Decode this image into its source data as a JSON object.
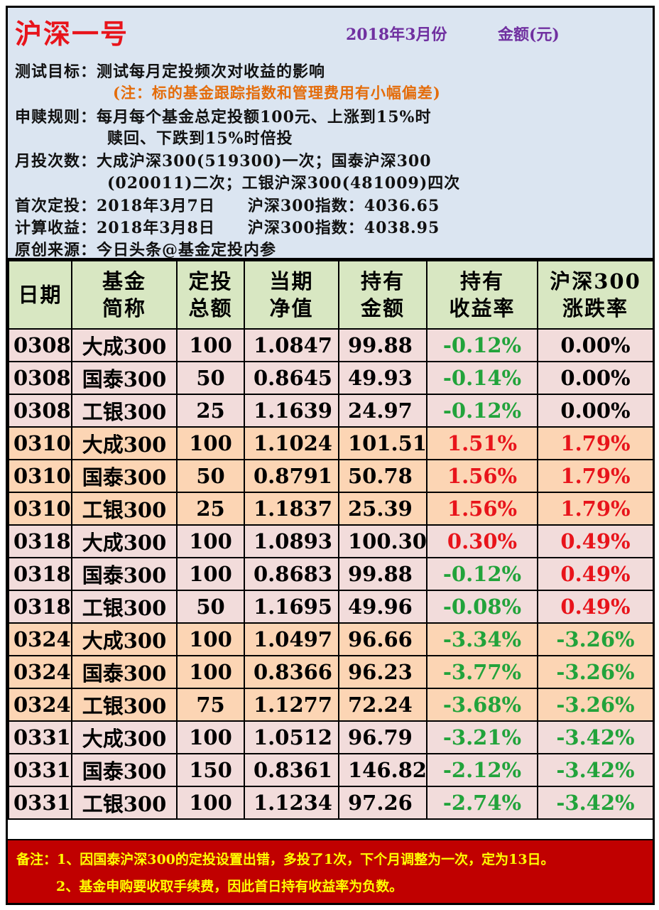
{
  "header": {
    "title": "沪深一号",
    "month": "2018年3月份",
    "unit": "金额(元)",
    "line1": "测试目标：测试每月定投频次对收益的影响",
    "line1_note": "(注：标的基金跟踪指数和管理费用有小幅偏差)",
    "line2a": "申赎规则：每月每个基金总定投额100元、上涨到15%时",
    "line2b": "赎回、下跌到15%时倍投",
    "line3a": "月投次数：大成沪深300(519300)一次；国泰沪深300",
    "line3b": "(020011)二次；工银沪深300(481009)四次",
    "line4": "首次定投：2018年3月7日　　沪深300指数：4036.65",
    "line5": "计算收益：2018年3月8日　　沪深300指数：4038.95",
    "line6": "原创来源：今日头条@基金定投内参"
  },
  "table": {
    "headers": [
      "日期",
      "基金\n简称",
      "定投\n总额",
      "当期\n净值",
      "持有\n金额",
      "持有\n收益率",
      "沪深300\n涨跌率"
    ],
    "rows": [
      {
        "date": "0308",
        "fund": "大成300",
        "amount": "100",
        "nav": "1.0847",
        "hold": "99.88",
        "ret": "-0.12%",
        "idx": "0.00%"
      },
      {
        "date": "0308",
        "fund": "国泰300",
        "amount": "50",
        "nav": "0.8645",
        "hold": "49.93",
        "ret": "-0.14%",
        "idx": "0.00%"
      },
      {
        "date": "0308",
        "fund": "工银300",
        "amount": "25",
        "nav": "1.1639",
        "hold": "24.97",
        "ret": "-0.12%",
        "idx": "0.00%"
      },
      {
        "date": "0310",
        "fund": "大成300",
        "amount": "100",
        "nav": "1.1024",
        "hold": "101.51",
        "ret": "1.51%",
        "idx": "1.79%"
      },
      {
        "date": "0310",
        "fund": "国泰300",
        "amount": "50",
        "nav": "0.8791",
        "hold": "50.78",
        "ret": "1.56%",
        "idx": "1.79%"
      },
      {
        "date": "0310",
        "fund": "工银300",
        "amount": "25",
        "nav": "1.1837",
        "hold": "25.39",
        "ret": "1.56%",
        "idx": "1.79%"
      },
      {
        "date": "0318",
        "fund": "大成300",
        "amount": "100",
        "nav": "1.0893",
        "hold": "100.30",
        "ret": "0.30%",
        "idx": "0.49%"
      },
      {
        "date": "0318",
        "fund": "国泰300",
        "amount": "100",
        "nav": "0.8683",
        "hold": "99.88",
        "ret": "-0.12%",
        "idx": "0.49%"
      },
      {
        "date": "0318",
        "fund": "工银300",
        "amount": "50",
        "nav": "1.1695",
        "hold": "49.96",
        "ret": "-0.08%",
        "idx": "0.49%"
      },
      {
        "date": "0324",
        "fund": "大成300",
        "amount": "100",
        "nav": "1.0497",
        "hold": "96.66",
        "ret": "-3.34%",
        "idx": "-3.26%"
      },
      {
        "date": "0324",
        "fund": "国泰300",
        "amount": "100",
        "nav": "0.8366",
        "hold": "96.23",
        "ret": "-3.77%",
        "idx": "-3.26%"
      },
      {
        "date": "0324",
        "fund": "工银300",
        "amount": "75",
        "nav": "1.1277",
        "hold": "72.24",
        "ret": "-3.68%",
        "idx": "-3.26%"
      },
      {
        "date": "0331",
        "fund": "大成300",
        "amount": "100",
        "nav": "1.0512",
        "hold": "96.79",
        "ret": "-3.21%",
        "idx": "-3.42%"
      },
      {
        "date": "0331",
        "fund": "国泰300",
        "amount": "150",
        "nav": "0.8361",
        "hold": "146.82",
        "ret": "-2.12%",
        "idx": "-3.42%"
      },
      {
        "date": "0331",
        "fund": "工银300",
        "amount": "100",
        "nav": "1.1234",
        "hold": "97.26",
        "ret": "-2.74%",
        "idx": "-3.42%"
      }
    ]
  },
  "footer": {
    "note1": "备注：1、因国泰沪深300的定投设置出错，多投了1次，下个月调整为一次，定为13日。",
    "note2": "2、基金申购要收取手续费，因此首日持有收益率为负数。"
  },
  "colors": {
    "positive": "#e8141b",
    "negative": "#22a33b",
    "header_bg": "#dbe5f1",
    "table_head_bg": "#d8e7c2",
    "row_pink": "#f2dcdb",
    "row_orange": "#fcd5b4",
    "footer_bg": "#c00000",
    "footer_text": "#ffff00"
  }
}
